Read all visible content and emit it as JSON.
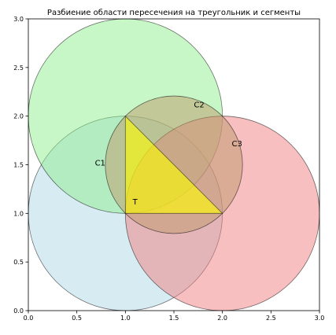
{
  "chart_data": {
    "type": "geometry",
    "title": "Разбиение области пересечения на треугольник и сегменты",
    "xlim": [
      0,
      3
    ],
    "ylim": [
      0,
      3
    ],
    "xticks": [
      "0.0",
      "0.5",
      "1.0",
      "1.5",
      "2.0",
      "2.5",
      "3.0"
    ],
    "yticks": [
      "0.0",
      "0.5",
      "1.0",
      "1.5",
      "2.0",
      "2.5",
      "3.0"
    ],
    "grid": false,
    "circles": [
      {
        "center": [
          1,
          1
        ],
        "radius": 1,
        "color": "#add8e6"
      },
      {
        "center": [
          1,
          2
        ],
        "radius": 1,
        "color": "#90ee90"
      },
      {
        "center": [
          2,
          1
        ],
        "radius": 1,
        "color": "#f08080"
      },
      {
        "center": [
          1.5,
          1.5
        ],
        "radius": 0.7071,
        "color": "#c09a6b"
      }
    ],
    "triangle": {
      "points": [
        [
          1,
          1
        ],
        [
          2,
          1
        ],
        [
          1,
          2
        ]
      ],
      "color": "#ffff00"
    },
    "labels": [
      {
        "text": "T",
        "x": 1.1,
        "y": 1.12
      },
      {
        "text": "C1",
        "x": 0.74,
        "y": 1.52
      },
      {
        "text": "C2",
        "x": 1.76,
        "y": 2.12
      },
      {
        "text": "C3",
        "x": 2.15,
        "y": 1.72
      }
    ]
  }
}
